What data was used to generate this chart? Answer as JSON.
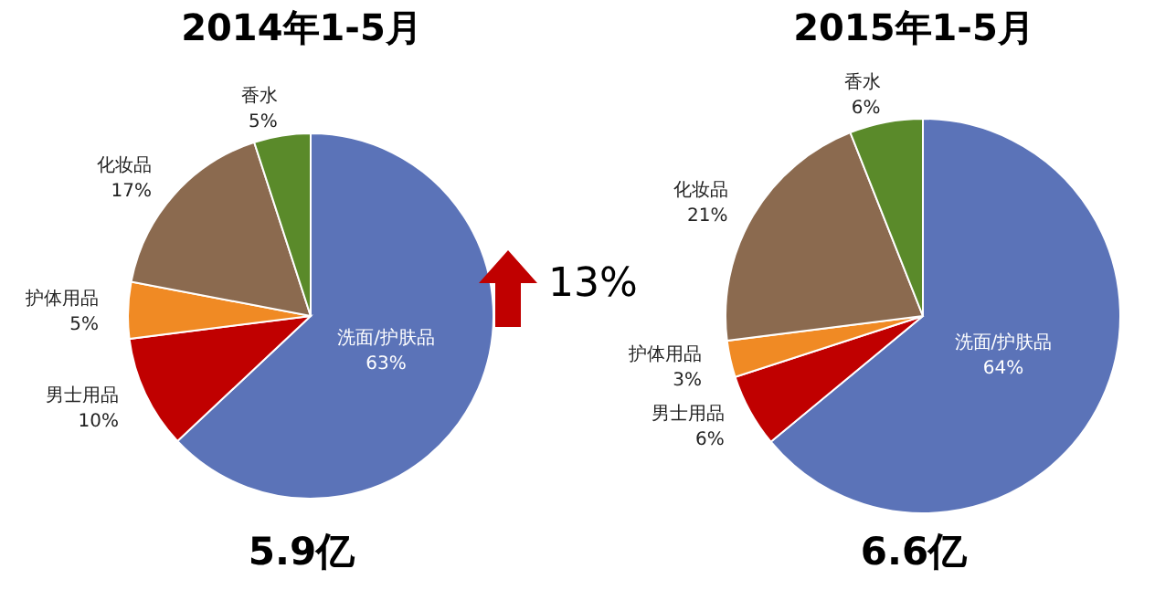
{
  "chart_data": [
    {
      "type": "pie",
      "title": "2014年1-5月",
      "categories": [
        "洗面/护肤品",
        "男士用品",
        "护体用品",
        "化妆品",
        "香水"
      ],
      "values": [
        63,
        10,
        5,
        17,
        5
      ],
      "colors": [
        "#5b73b8",
        "#c00000",
        "#f08a24",
        "#8b6a4f",
        "#5a8a2a"
      ],
      "value_labels": [
        "63%",
        "10%",
        "5%",
        "17%",
        "5%"
      ],
      "legend": false,
      "annotations": [
        "5.9亿"
      ]
    },
    {
      "type": "other",
      "annotations": [
        "13%"
      ]
    },
    {
      "type": "pie",
      "title": "2015年1-5月",
      "categories": [
        "洗面/护肤品",
        "男士用品",
        "护体用品",
        "化妆品",
        "香水"
      ],
      "values": [
        64,
        6,
        3,
        21,
        6
      ],
      "colors": [
        "#5b73b8",
        "#c00000",
        "#f08a24",
        "#8b6a4f",
        "#5a8a2a"
      ],
      "value_labels": [
        "64%",
        "6%",
        "3%",
        "21%",
        "6%"
      ],
      "legend": false,
      "annotations": [
        "6.6亿"
      ]
    }
  ]
}
